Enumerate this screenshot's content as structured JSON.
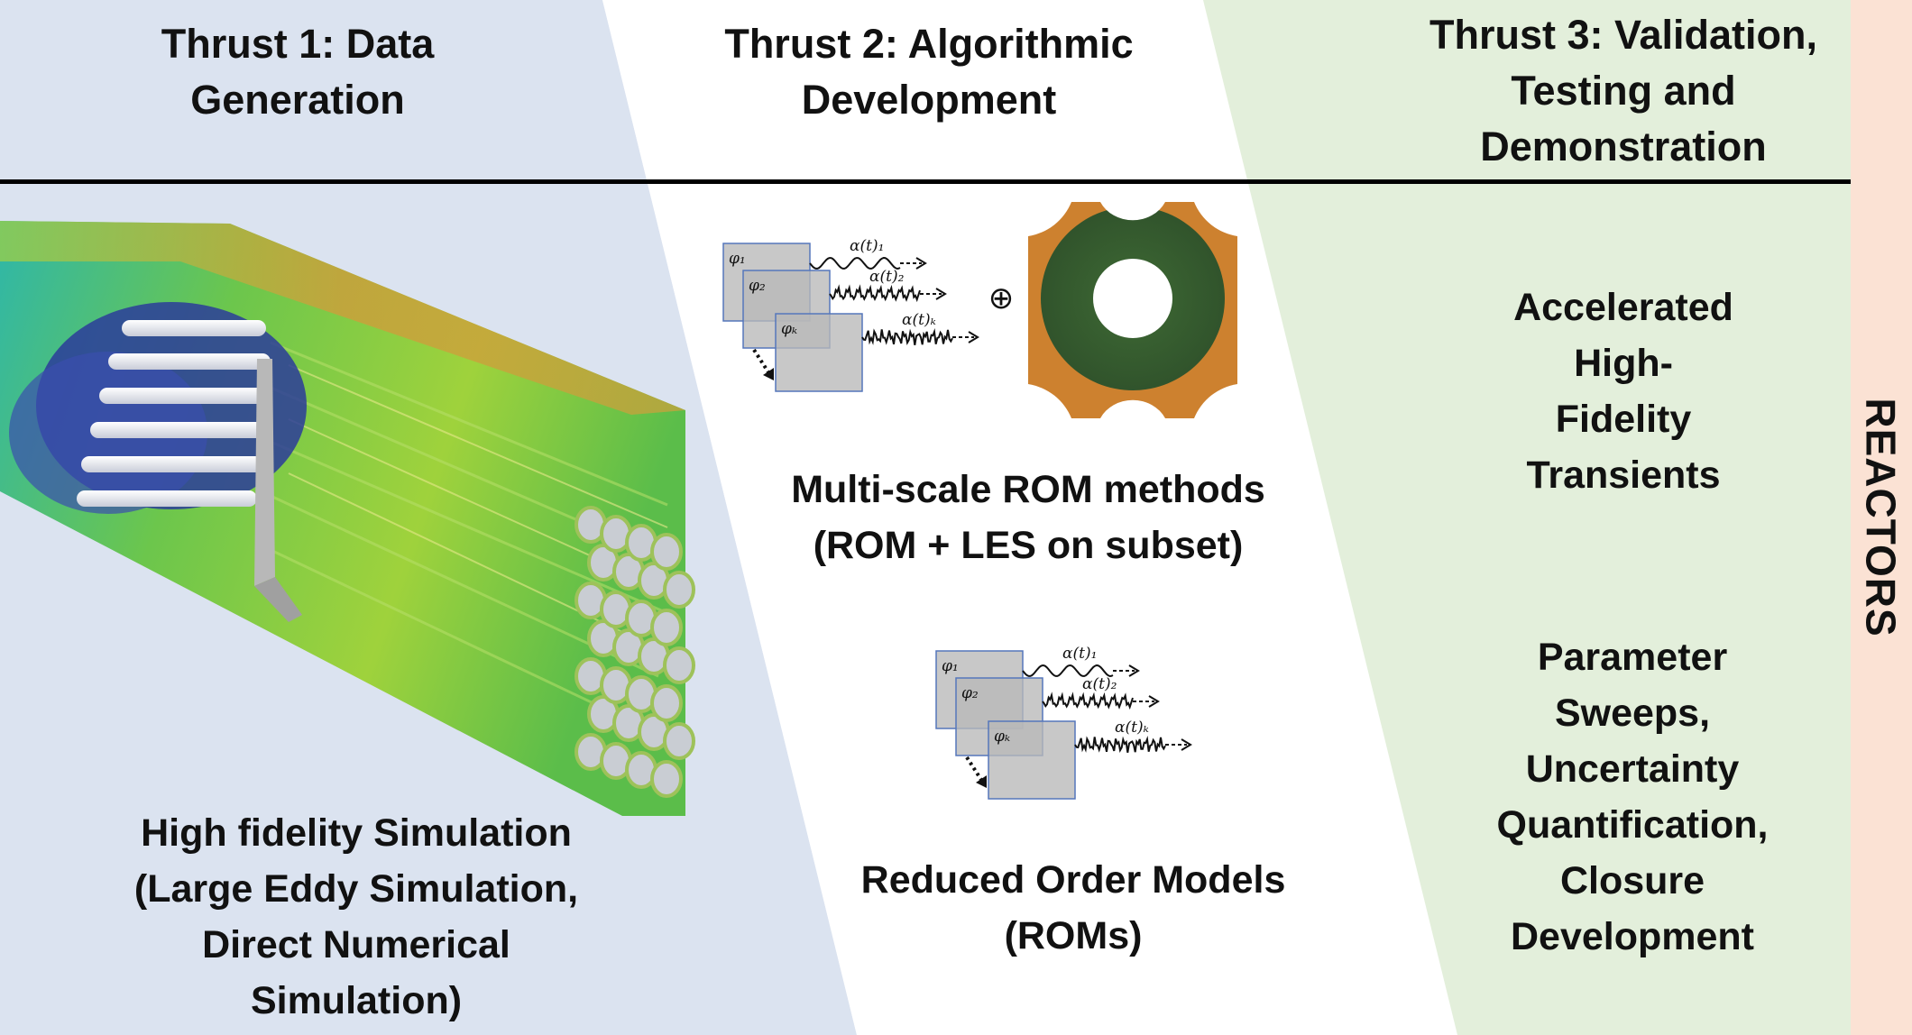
{
  "colors": {
    "thrust1_bg": "#dbe3f0",
    "thrust2_bg": "#ffffff",
    "thrust3_bg": "#e3efdb",
    "reactors_bg": "#fbe2d4",
    "divider": "#000000"
  },
  "headers": {
    "thrust1": [
      "Thrust 1: Data",
      "Generation"
    ],
    "thrust2": [
      "Thrust 2: Algorithmic",
      "Development"
    ],
    "thrust3": [
      "Thrust 3: Validation,",
      "Testing and",
      "Demonstration"
    ]
  },
  "thrust1": {
    "image": "rod-bundle-simulation-image",
    "caption": [
      "High fidelity Simulation",
      "(Large Eddy Simulation,",
      "Direct Numerical",
      "Simulation)"
    ]
  },
  "thrust2": {
    "multiscale_caption": [
      "Multi-scale ROM methods",
      "(ROM + LES on subset)"
    ],
    "rom_caption": [
      "Reduced Order Models",
      "(ROMs)"
    ],
    "oplus_symbol": "⊕",
    "modes": [
      "φ₁",
      "φ₂",
      "φₖ"
    ],
    "coefficients": [
      "α(t)₁",
      "α(t)₂",
      "α(t)ₖ"
    ]
  },
  "thrust3": {
    "item1": [
      "Accelerated",
      "High-",
      "Fidelity",
      "Transients"
    ],
    "item2": [
      "Parameter",
      "Sweeps,",
      "Uncertainty",
      "Quantification,",
      "Closure",
      "Development"
    ]
  },
  "side_label": "REACTORS"
}
